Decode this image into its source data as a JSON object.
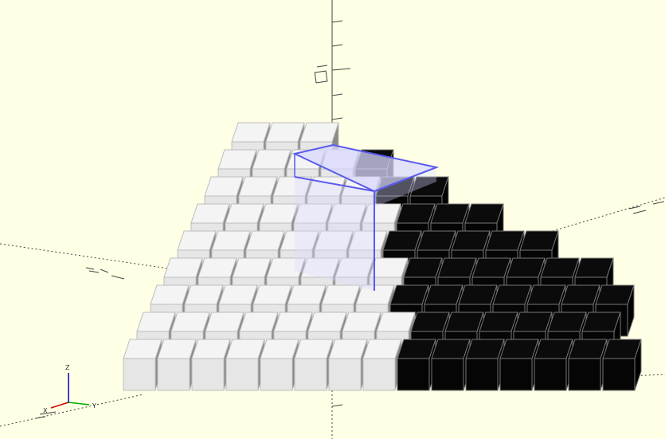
{
  "app": {
    "view": "3d-viewport"
  },
  "scene": {
    "background": "#ffffe5",
    "light_face_colors": [
      "#e6e6e6",
      "#f4f4f4",
      "#8a8a8a"
    ],
    "dark_face_colors": [
      "#050505",
      "#0b0b0b",
      "#000000"
    ],
    "dark_edge_color": "#777777",
    "light_edge_color": "#bdbdbd",
    "highlight_color": "#5a5aee",
    "highlight_fill": "#d8d8ff"
  },
  "axis_indicator": {
    "x_label": "X",
    "y_label": "Y",
    "z_label": "Z",
    "x_color": "#cc0000",
    "y_color": "#00aa00",
    "z_color": "#0000cc"
  }
}
